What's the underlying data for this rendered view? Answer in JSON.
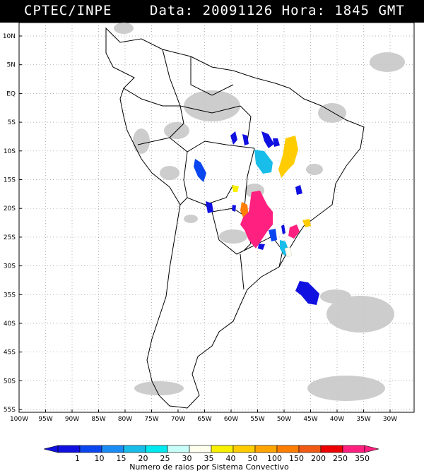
{
  "header": {
    "org": "CPTEC/INPE",
    "data_label": "Data:",
    "date": "20091126",
    "hora_label": "Hora:",
    "time": "1845 GMT"
  },
  "map": {
    "lat_ticks": [
      "10N",
      "5N",
      "EQ",
      "5S",
      "10S",
      "15S",
      "20S",
      "25S",
      "30S",
      "35S",
      "40S",
      "45S",
      "50S",
      "55S"
    ],
    "lon_ticks": [
      "100W",
      "95W",
      "90W",
      "85W",
      "80W",
      "75W",
      "70W",
      "65W",
      "60W",
      "55W",
      "50W",
      "45W",
      "40W",
      "35W",
      "30W"
    ]
  },
  "legend": {
    "title": "Numero de raios por Sistema Convectivo",
    "labels": [
      "1",
      "10",
      "15",
      "20",
      "25",
      "30",
      "35",
      "40",
      "50",
      "100",
      "150",
      "200",
      "250",
      "350"
    ],
    "colors": [
      "#1010e0",
      "#0a46f0",
      "#1a8cf5",
      "#19bde9",
      "#00e8f0",
      "#c8fff8",
      "#fffff0",
      "#f8f000",
      "#ffcc00",
      "#ffa400",
      "#ff7e00",
      "#f05a14",
      "#ee0000",
      "#ff2080"
    ]
  },
  "icons": [
    "scale-left-arrow-icon",
    "scale-right-arrow-icon"
  ]
}
